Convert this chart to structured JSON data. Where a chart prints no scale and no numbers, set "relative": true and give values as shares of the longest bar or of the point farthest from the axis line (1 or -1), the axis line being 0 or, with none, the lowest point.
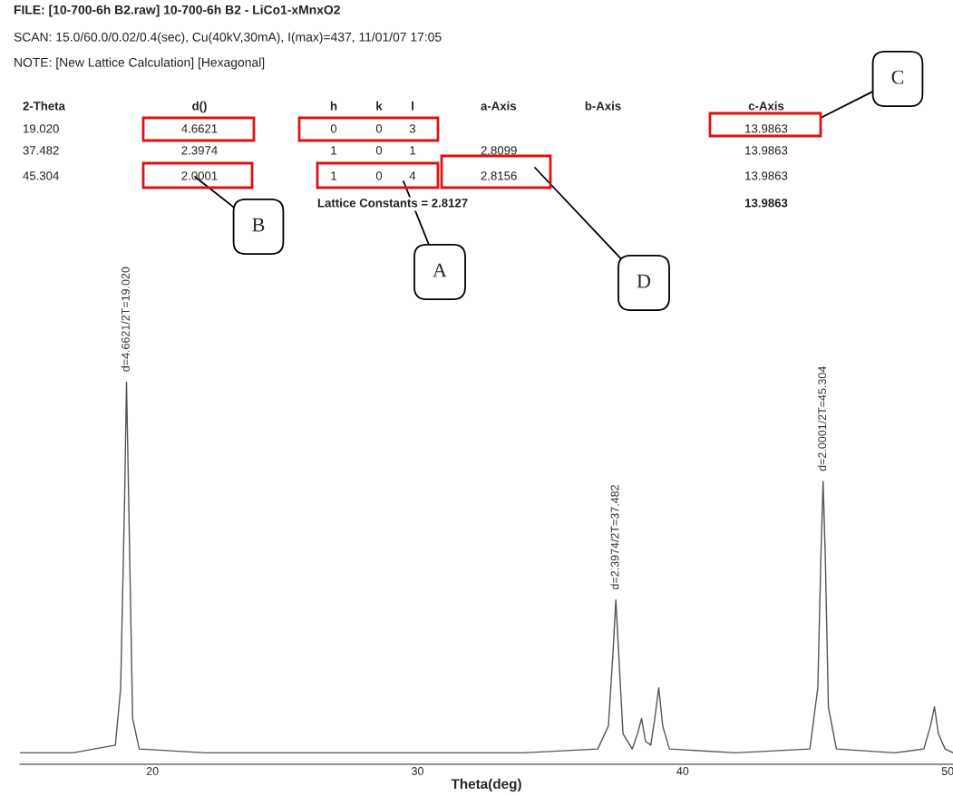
{
  "chart_data": {
    "type": "line",
    "relative": true,
    "xlabel": "Theta(deg)",
    "xlim": [
      15,
      50.2
    ],
    "xticks": [
      20,
      30,
      40,
      50
    ],
    "grid": false,
    "legend": false,
    "marker": "none",
    "line_style": "solid",
    "x": [
      15.0,
      17.0,
      18.6,
      18.8,
      18.95,
      19.02,
      19.1,
      19.25,
      19.5,
      22,
      26,
      30,
      34,
      36.8,
      37.2,
      37.38,
      37.48,
      37.58,
      37.75,
      38.1,
      38.3,
      38.45,
      38.6,
      38.8,
      38.95,
      39.1,
      39.25,
      39.5,
      42,
      44.8,
      45.1,
      45.22,
      45.3,
      45.38,
      45.5,
      45.8,
      48,
      49.1,
      49.35,
      49.5,
      49.65,
      49.9,
      50.2
    ],
    "series": [
      {
        "color": "#555555",
        "values": [
          0.03,
          0.03,
          0.05,
          0.2,
          0.7,
          1.0,
          0.7,
          0.12,
          0.04,
          0.03,
          0.03,
          0.03,
          0.03,
          0.04,
          0.1,
          0.3,
          0.43,
          0.3,
          0.08,
          0.04,
          0.08,
          0.12,
          0.06,
          0.05,
          0.12,
          0.2,
          0.1,
          0.04,
          0.03,
          0.04,
          0.2,
          0.55,
          0.74,
          0.55,
          0.15,
          0.04,
          0.03,
          0.04,
          0.1,
          0.15,
          0.08,
          0.04,
          0.03
        ]
      }
    ],
    "annotations": [
      "FILE: [10-700-6h B2.raw] 10-700-6h B2 - LiCo1-xMnxO2",
      "SCAN: 15.0/60.0/0.02/0.4(sec), Cu(40kV,30mA), I(max)=437, 11/01/07 17:05",
      "NOTE: [New Lattice Calculation] [Hexagonal]",
      "2-Theta",
      "d()",
      "h",
      "k",
      "l",
      "a-Axis",
      "b-Axis",
      "c-Axis",
      "19.020",
      "4.6621",
      "0",
      "0",
      "3",
      "13.9863",
      "37.482",
      "2.3974",
      "1",
      "0",
      "1",
      "2.8099",
      "13.9863",
      "45.304",
      "2.0001",
      "1",
      "0",
      "4",
      "2.8156",
      "13.9863",
      "Lattice Constants = 2.8127",
      "13.9863",
      "A",
      "B",
      "C",
      "D",
      {
        "text": "d=4.6621/2T=19.020",
        "x": 19.02,
        "y": 1.0
      },
      {
        "text": "d=2.3974/2T=37.482",
        "x": 37.48,
        "y": 0.43
      },
      {
        "text": "d=2.0001/2T=45.304",
        "x": 45.3,
        "y": 0.74
      }
    ]
  }
}
